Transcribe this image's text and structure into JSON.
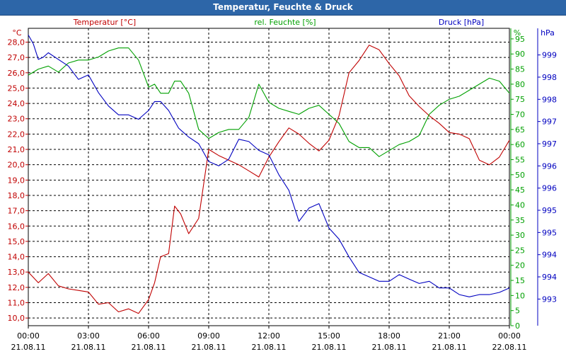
{
  "window": {
    "title": "Temperatur, Feuchte & Druck"
  },
  "colors": {
    "temperature": "#c00000",
    "humidity": "#00a000",
    "pressure": "#0000c0",
    "title_bar": "#2d66a8",
    "grid": "#000000"
  },
  "chart_data": {
    "type": "line",
    "title": "Temperatur, Feuchte & Druck",
    "grid": true,
    "x": {
      "start": "21.08.11 00:00",
      "end": "22.08.11 00:00",
      "tick_labels": [
        {
          "time": "00:00",
          "date": "21.08.11"
        },
        {
          "time": "03:00",
          "date": "21.08.11"
        },
        {
          "time": "06:00",
          "date": "21.08.11"
        },
        {
          "time": "09:00",
          "date": "21.08.11"
        },
        {
          "time": "12:00",
          "date": "21.08.11"
        },
        {
          "time": "15:00",
          "date": "21.08.11"
        },
        {
          "time": "18:00",
          "date": "21.08.11"
        },
        {
          "time": "21:00",
          "date": "21.08.11"
        },
        {
          "time": "00:00",
          "date": "22.08.11"
        }
      ]
    },
    "axes": {
      "temperature": {
        "label": "Temperatur [°C]",
        "unit": "°C",
        "range": [
          9.5,
          28.9
        ],
        "tick_labels": [
          "10,0",
          "11,0",
          "12,0",
          "13,0",
          "14,0",
          "15,0",
          "16,0",
          "17,0",
          "18,0",
          "19,0",
          "20,0",
          "21,0",
          "22,0",
          "23,0",
          "24,0",
          "25,0",
          "26,0",
          "27,0",
          "28,0"
        ]
      },
      "humidity": {
        "label": "rel. Feuchte [%]",
        "unit": "%",
        "range": [
          0,
          98.5
        ],
        "tick_labels": [
          "0",
          "5",
          "10",
          "15",
          "20",
          "25",
          "30",
          "35",
          "40",
          "45",
          "50",
          "55",
          "60",
          "65",
          "70",
          "75",
          "80",
          "85",
          "90",
          "95"
        ]
      },
      "pressure": {
        "label": "Druck [hPa]",
        "unit": "hPa",
        "range": [
          992.75,
          999.45
        ],
        "tick_labels": [
          "993",
          "994",
          "994",
          "995",
          "995",
          "996",
          "996",
          "997",
          "997",
          "998",
          "998",
          "999"
        ]
      }
    },
    "series": [
      {
        "name": "Temperatur [°C]",
        "axis": "temperature",
        "color": "#c00000",
        "x_hours": [
          0,
          0.5,
          1,
          1.5,
          2,
          2.5,
          3,
          3.5,
          4,
          4.5,
          5,
          5.5,
          6,
          6.3,
          6.6,
          7,
          7.3,
          7.6,
          8,
          8.5,
          9,
          9.5,
          10,
          10.5,
          11,
          11.5,
          12,
          12.5,
          13,
          13.5,
          14,
          14.5,
          15,
          15.5,
          16,
          16.5,
          17,
          17.5,
          18,
          18.5,
          19,
          19.5,
          20,
          20.5,
          21,
          21.5,
          22,
          22.5,
          23,
          23.5,
          24
        ],
        "values": [
          13.0,
          12.3,
          12.9,
          12.1,
          11.9,
          11.8,
          11.7,
          10.9,
          11.0,
          10.4,
          10.6,
          10.3,
          11.2,
          12.3,
          14.0,
          14.2,
          17.3,
          16.8,
          15.5,
          16.5,
          21.0,
          20.6,
          20.3,
          20.0,
          19.6,
          19.2,
          20.5,
          21.5,
          22.4,
          22.0,
          21.4,
          20.9,
          21.6,
          23.2,
          26.0,
          26.8,
          27.8,
          27.5,
          26.6,
          25.8,
          24.5,
          23.8,
          23.2,
          22.7,
          22.1,
          22.0,
          21.7,
          20.3,
          20.0,
          20.5,
          21.6
        ]
      },
      {
        "name": "rel. Feuchte [%]",
        "axis": "humidity",
        "color": "#00a000",
        "x_hours": [
          0,
          0.5,
          1,
          1.5,
          2,
          2.5,
          3,
          3.5,
          4,
          4.5,
          5,
          5.5,
          6,
          6.3,
          6.6,
          7,
          7.3,
          7.6,
          8,
          8.5,
          9,
          9.5,
          10,
          10.5,
          11,
          11.5,
          12,
          12.5,
          13,
          13.5,
          14,
          14.5,
          15,
          15.5,
          16,
          16.5,
          17,
          17.5,
          18,
          18.5,
          19,
          19.5,
          20,
          20.5,
          21,
          21.5,
          22,
          22.5,
          23,
          23.5,
          24
        ],
        "values": [
          83,
          85,
          86,
          84,
          87,
          88,
          88,
          89,
          91,
          92,
          92,
          88,
          79,
          80,
          77,
          77,
          81,
          81,
          77,
          65,
          62,
          64,
          65,
          65,
          69,
          80,
          74,
          72,
          71,
          70,
          72,
          73,
          70,
          67,
          61,
          59,
          59,
          56,
          58,
          60,
          61,
          63,
          70,
          73,
          75,
          76,
          78,
          80,
          82,
          81,
          77
        ]
      },
      {
        "name": "Druck [hPa]",
        "axis": "pressure",
        "color": "#0000c0",
        "x_hours": [
          0,
          0.25,
          0.5,
          0.75,
          1,
          1.5,
          2,
          2.5,
          3,
          3.5,
          4,
          4.5,
          5,
          5.5,
          6,
          6.3,
          6.6,
          7,
          7.5,
          8,
          8.5,
          9,
          9.5,
          10,
          10.5,
          11,
          11.5,
          12,
          12.5,
          13,
          13.5,
          14,
          14.5,
          15,
          15.5,
          16,
          16.5,
          17,
          17.5,
          18,
          18.5,
          19,
          19.5,
          20,
          20.5,
          21,
          21.5,
          22,
          22.5,
          23,
          23.5,
          24
        ],
        "values": [
          999.3,
          999.1,
          998.75,
          998.8,
          998.9,
          998.75,
          998.6,
          998.3,
          998.4,
          998.0,
          997.7,
          997.5,
          997.5,
          997.4,
          997.6,
          997.8,
          997.8,
          997.6,
          997.2,
          997.0,
          996.85,
          996.45,
          996.35,
          996.5,
          996.95,
          996.9,
          996.7,
          996.6,
          996.15,
          995.8,
          995.1,
          995.4,
          995.5,
          994.95,
          994.7,
          994.3,
          993.95,
          993.85,
          993.75,
          993.75,
          993.9,
          993.8,
          993.7,
          993.75,
          993.6,
          993.6,
          993.45,
          993.4,
          993.45,
          993.45,
          993.5,
          993.6
        ]
      }
    ]
  }
}
